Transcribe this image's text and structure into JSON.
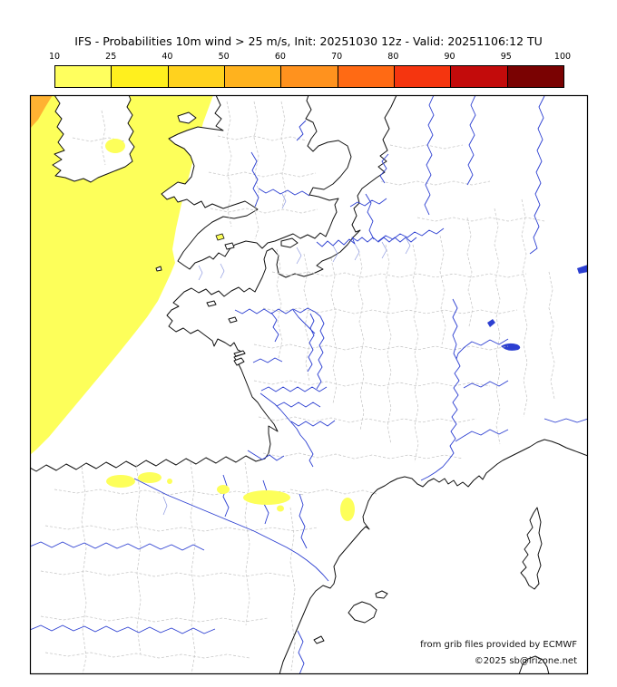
{
  "title": "IFS - Probabilities 10m wind > 25 m/s, Init: 20251030 12z - Valid: 20251106:12 TU",
  "colorbar": {
    "tick_labels": [
      "10",
      "25",
      "40",
      "50",
      "60",
      "70",
      "80",
      "90",
      "95",
      "100"
    ],
    "segment_colors": [
      "#ffff5e",
      "#fff01e",
      "#ffd21e",
      "#ffb21e",
      "#ff921e",
      "#ff6a14",
      "#f5350f",
      "#c30b0b",
      "#7a0202"
    ]
  },
  "map": {
    "colors": {
      "probability_low": "#fdff5a",
      "probability_mid": "#ffb232",
      "coastline": "#111111",
      "river": "#2c3fd1",
      "river_minor": "#8d99e0",
      "boundary": "#c2c2c2"
    }
  },
  "credits": {
    "line1": "from grib files provided by ECMWF",
    "line2": "©2025 sb@irizone.net"
  }
}
